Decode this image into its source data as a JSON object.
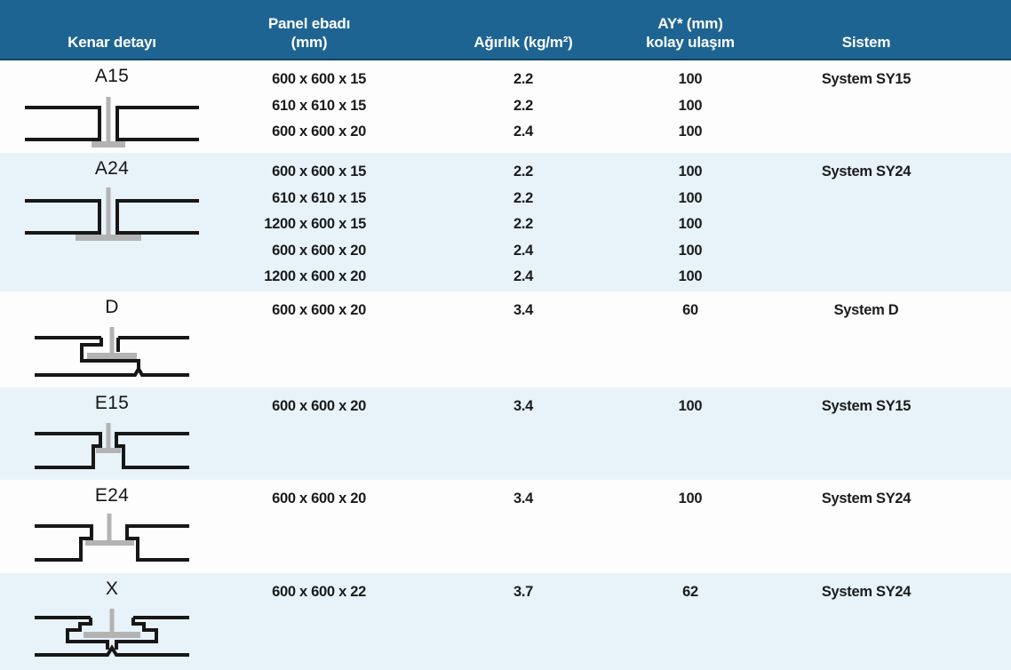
{
  "table": {
    "columns": [
      {
        "label": "Kenar detayı"
      },
      {
        "label": "Panel ebadı (mm)"
      },
      {
        "label": "Ağırlık (kg/m²)"
      },
      {
        "label": "AY* (mm)",
        "label2": "kolay ulaşım"
      },
      {
        "label": "Sistem"
      }
    ],
    "rows": [
      {
        "label": "A15",
        "diagram": "a15",
        "sizes": [
          "600 x 600 x 15",
          "610 x 610 x 15",
          "600 x 600 x 20"
        ],
        "weights": [
          "2.2",
          "2.2",
          "2.4"
        ],
        "ay": [
          "100",
          "100",
          "100"
        ],
        "system": "System SY15"
      },
      {
        "label": "A24",
        "diagram": "a24",
        "sizes": [
          "600 x 600 x 15",
          "610 x 610 x 15",
          "1200 x 600 x 15",
          "600 x 600 x 20",
          "1200 x 600 x 20"
        ],
        "weights": [
          "2.2",
          "2.2",
          "2.2",
          "2.4",
          "2.4"
        ],
        "ay": [
          "100",
          "100",
          "100",
          "100",
          "100"
        ],
        "system": "System SY24"
      },
      {
        "label": "D",
        "diagram": "d",
        "sizes": [
          "600 x 600 x 20"
        ],
        "weights": [
          "3.4"
        ],
        "ay": [
          "60"
        ],
        "system": "System D"
      },
      {
        "label": "E15",
        "diagram": "e15",
        "sizes": [
          "600 x 600 x 20"
        ],
        "weights": [
          "3.4"
        ],
        "ay": [
          "100"
        ],
        "system": "System SY15"
      },
      {
        "label": "E24",
        "diagram": "e24",
        "sizes": [
          "600 x 600 x 20"
        ],
        "weights": [
          "3.4"
        ],
        "ay": [
          "100"
        ],
        "system": "System SY24"
      },
      {
        "label": "X",
        "diagram": "x",
        "sizes": [
          "600 x 600 x 22"
        ],
        "weights": [
          "3.7"
        ],
        "ay": [
          "62"
        ],
        "system": "System SY24"
      }
    ]
  },
  "colors": {
    "header_bg": "#1e6492",
    "header_text": "#ffffff",
    "row_bg": "#fdfdfd",
    "row_alt_bg": "#e7f3f9",
    "text": "#1b1b1b",
    "profile_gray": "#b3b3b3",
    "line_black": "#171717",
    "header_border": "#0f4568"
  }
}
